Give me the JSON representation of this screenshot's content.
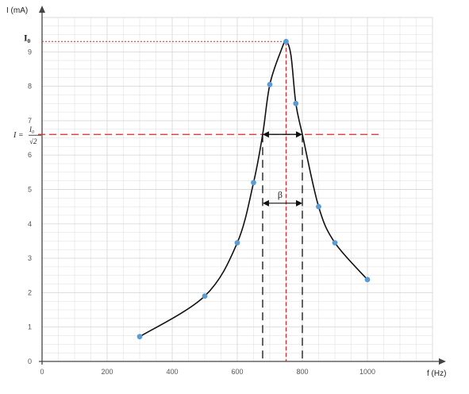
{
  "chart_data": {
    "type": "scatter",
    "title": "",
    "xlabel": "f (Hz)",
    "ylabel": "I (mA)",
    "xlim": [
      0,
      1200
    ],
    "ylim": [
      0,
      10
    ],
    "x_ticks": [
      0,
      200,
      400,
      600,
      800,
      1000
    ],
    "y_ticks": [
      0,
      1,
      2,
      3,
      4,
      5,
      6,
      7,
      8,
      9
    ],
    "grid": true,
    "points": [
      {
        "x": 300,
        "y": 0.72
      },
      {
        "x": 500,
        "y": 1.9
      },
      {
        "x": 600,
        "y": 3.45
      },
      {
        "x": 650,
        "y": 5.2
      },
      {
        "x": 700,
        "y": 8.05
      },
      {
        "x": 750,
        "y": 9.3
      },
      {
        "x": 780,
        "y": 7.5
      },
      {
        "x": 850,
        "y": 4.5
      },
      {
        "x": 900,
        "y": 3.45
      },
      {
        "x": 1000,
        "y": 2.38
      }
    ],
    "curve": [
      {
        "x": 300,
        "y": 0.72
      },
      {
        "x": 500,
        "y": 1.9
      },
      {
        "x": 600,
        "y": 3.45
      },
      {
        "x": 650,
        "y": 5.2
      },
      {
        "x": 678,
        "y": 6.6
      },
      {
        "x": 700,
        "y": 8.05
      },
      {
        "x": 735,
        "y": 9.05
      },
      {
        "x": 750,
        "y": 9.3
      },
      {
        "x": 765,
        "y": 8.9
      },
      {
        "x": 780,
        "y": 7.5
      },
      {
        "x": 800,
        "y": 6.6
      },
      {
        "x": 850,
        "y": 4.5
      },
      {
        "x": 900,
        "y": 3.45
      },
      {
        "x": 1000,
        "y": 2.38
      }
    ],
    "peak": {
      "x": 750,
      "y": 9.3,
      "label": "I₀"
    },
    "half_power": {
      "y": 6.6,
      "x_low": 678,
      "x_high": 800,
      "label_lhs": "I =",
      "label_num": "I₀",
      "label_den": "√2"
    },
    "bandwidth": {
      "label": "β",
      "y": 4.6
    },
    "colors": {
      "points": "#5b9bd5",
      "curve": "#111111",
      "guide_red": "#d9262a",
      "guide_black": "#111111",
      "grid": "#d9d9d9",
      "axis": "#444444"
    }
  }
}
